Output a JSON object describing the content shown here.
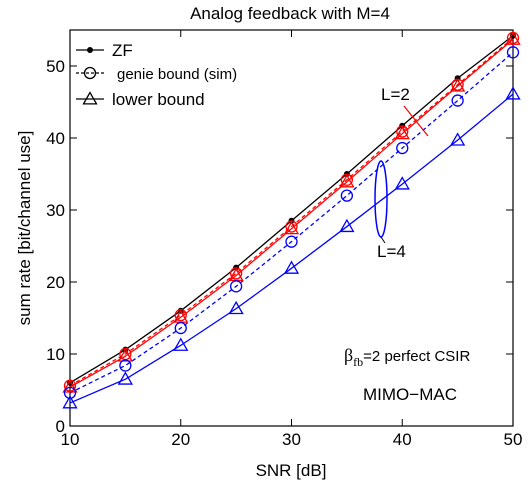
{
  "chart_data": {
    "type": "line",
    "title": "Analog feedback with M=4",
    "xlabel": "SNR [dB]",
    "ylabel": "sum rate [bit/channel use]",
    "xlim": [
      10,
      50
    ],
    "ylim": [
      0,
      55
    ],
    "xticks": [
      10,
      20,
      30,
      40,
      50
    ],
    "yticks": [
      0,
      10,
      20,
      30,
      40,
      50
    ],
    "grid": false,
    "x": [
      10,
      15,
      20,
      25,
      30,
      35,
      40,
      45,
      50
    ],
    "legend": {
      "position": "top-left",
      "entries": [
        {
          "label": "ZF",
          "marker": "dot",
          "dash": "solid"
        },
        {
          "label": "genie bound  (sim)",
          "marker": "circle",
          "dash": "dashed"
        },
        {
          "label": "lower bound",
          "marker": "triangle",
          "dash": "solid"
        }
      ]
    },
    "series": [
      {
        "values": [
          6.0,
          10.6,
          16.0,
          22.0,
          28.5,
          35.0,
          41.7,
          48.3,
          54.2
        ],
        "color": "#000000",
        "marker": "dot",
        "dash": "solid"
      },
      {
        "values": [
          5.6,
          10.0,
          15.4,
          21.2,
          27.7,
          34.2,
          40.9,
          47.4,
          53.9
        ],
        "color": "#ff0000",
        "marker": "circle",
        "dash": "dashed"
      },
      {
        "values": [
          5.4,
          9.7,
          15.1,
          20.9,
          27.4,
          33.9,
          40.6,
          47.2,
          53.7
        ],
        "color": "#ff0000",
        "marker": "triangle",
        "dash": "solid"
      },
      {
        "values": [
          4.6,
          8.4,
          13.6,
          19.4,
          25.6,
          32.0,
          38.6,
          45.2,
          51.9
        ],
        "color": "#0000ff",
        "marker": "circle",
        "dash": "dashed"
      },
      {
        "values": [
          3.2,
          6.5,
          11.2,
          16.3,
          21.9,
          27.7,
          33.6,
          39.7,
          46.1
        ],
        "color": "#0000ff",
        "marker": "triangle",
        "dash": "solid"
      }
    ],
    "annotations": {
      "l2": "L=2",
      "l4": "L=4",
      "beta_symbol": "β",
      "beta_sub": "fb",
      "beta_rest": "=2  perfect CSIR",
      "mimo": "MIMO−MAC"
    }
  }
}
